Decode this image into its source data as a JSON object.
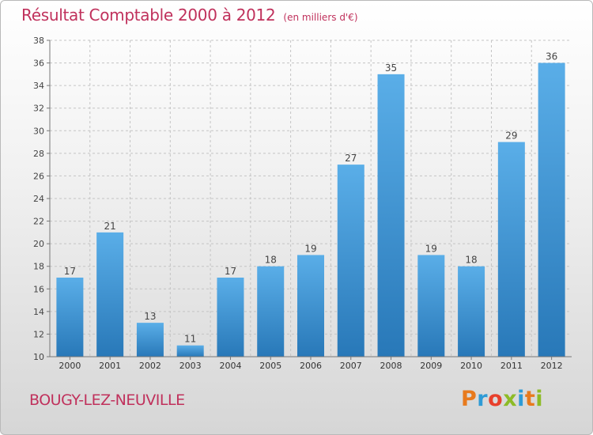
{
  "title": "Résultat Comptable 2000 à 2012",
  "subtitle": "(en milliers d'€)",
  "place": "BOUGY-LEZ-NEUVILLE",
  "logo": {
    "letters": [
      "P",
      "r",
      "o",
      "x",
      "i",
      "t",
      "i"
    ],
    "colors": [
      "#e87a1d",
      "#2e9bd6",
      "#e8402c",
      "#8dbb26",
      "#2e9bd6",
      "#e87a1d",
      "#8dbb26"
    ]
  },
  "colors": {
    "bar_top": "#5aaee8",
    "bar_bottom": "#2878b8",
    "title": "#c0315c"
  },
  "chart_data": {
    "type": "bar",
    "title": "Résultat Comptable 2000 à 2012",
    "subtitle": "(en milliers d'€)",
    "categories": [
      "2000",
      "2001",
      "2002",
      "2003",
      "2004",
      "2005",
      "2006",
      "2007",
      "2008",
      "2009",
      "2010",
      "2011",
      "2012"
    ],
    "values": [
      17,
      21,
      13,
      11,
      17,
      18,
      19,
      27,
      35,
      19,
      18,
      29,
      36
    ],
    "ylim": [
      10,
      38
    ],
    "yticks": [
      10,
      12,
      14,
      16,
      18,
      20,
      22,
      24,
      26,
      28,
      30,
      32,
      34,
      36,
      38
    ],
    "grid": true,
    "data_labels": true
  }
}
